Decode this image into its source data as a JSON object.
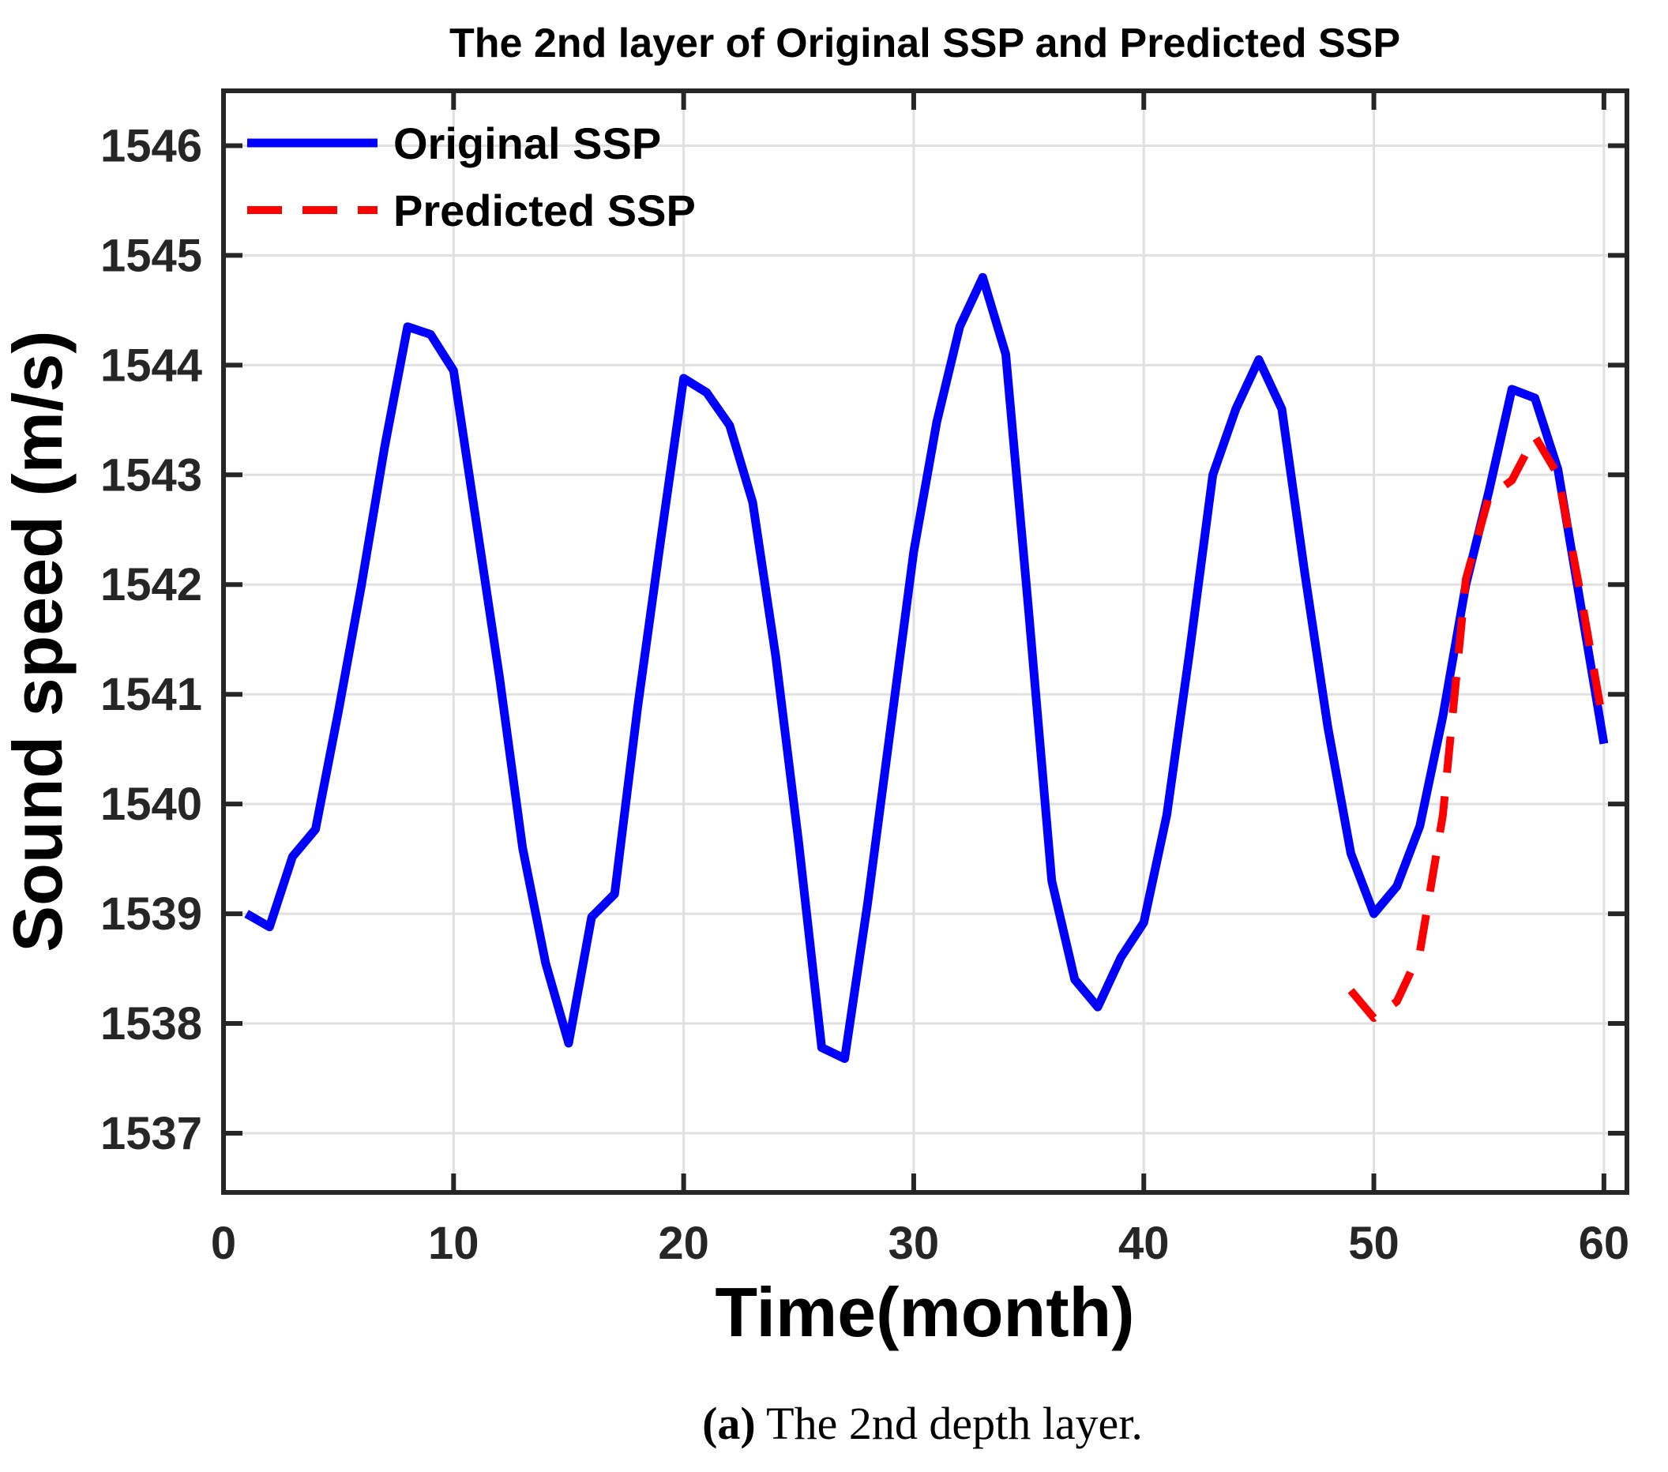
{
  "chart_data": {
    "type": "line",
    "title": "The 2nd layer of Original SSP and Predicted SSP",
    "xlabel": "Time(month)",
    "ylabel": "Sound speed (m/s)",
    "xlim": [
      0,
      61
    ],
    "ylim": [
      1536.46,
      1546.5
    ],
    "xticks": [
      0,
      10,
      20,
      30,
      40,
      50,
      60
    ],
    "yticks": [
      1537,
      1538,
      1539,
      1540,
      1541,
      1542,
      1543,
      1544,
      1545,
      1546
    ],
    "grid": true,
    "legend_position": "top-left-inside",
    "series": [
      {
        "name": "Original SSP",
        "color": "#0000FF",
        "line_style": "solid",
        "months": [
          1,
          2,
          3,
          4,
          5,
          6,
          7,
          8,
          9,
          10,
          11,
          12,
          13,
          14,
          15,
          16,
          17,
          18,
          19,
          20,
          21,
          22,
          23,
          24,
          25,
          26,
          27,
          28,
          29,
          30,
          31,
          32,
          33,
          34,
          35,
          36,
          37,
          38,
          39,
          40,
          41,
          42,
          43,
          44,
          45,
          46,
          47,
          48,
          49,
          50,
          51,
          52,
          53,
          54,
          55,
          56,
          57,
          58,
          59,
          60
        ],
        "values": [
          1539.0,
          1538.88,
          1539.52,
          1539.77,
          1540.85,
          1542.0,
          1543.25,
          1544.35,
          1544.28,
          1543.95,
          1542.55,
          1541.15,
          1539.6,
          1538.55,
          1537.82,
          1538.97,
          1539.18,
          1540.88,
          1542.4,
          1543.88,
          1543.75,
          1543.45,
          1542.75,
          1541.35,
          1539.65,
          1537.78,
          1537.68,
          1539.1,
          1540.7,
          1542.3,
          1543.48,
          1544.35,
          1544.8,
          1544.1,
          1541.75,
          1539.3,
          1538.4,
          1538.15,
          1538.6,
          1538.92,
          1539.9,
          1541.4,
          1543.0,
          1543.6,
          1544.05,
          1543.6,
          1542.1,
          1540.7,
          1539.55,
          1539.0,
          1539.25,
          1539.8,
          1540.8,
          1542.0,
          1542.85,
          1543.78,
          1543.7,
          1543.05,
          1541.8,
          1540.55
        ]
      },
      {
        "name": "Predicted SSP",
        "color": "#FF0000",
        "line_style": "dashed",
        "months": [
          49,
          50,
          51,
          52,
          53,
          54,
          55,
          56,
          57,
          58,
          59,
          60
        ],
        "values": [
          1538.3,
          1538.05,
          1538.2,
          1538.65,
          1539.9,
          1542.05,
          1542.8,
          1542.95,
          1543.35,
          1543.0,
          1541.9,
          1540.7
        ]
      }
    ]
  },
  "legend": {
    "items": [
      {
        "label": "Original SSP"
      },
      {
        "label": "Predicted SSP"
      }
    ]
  },
  "caption": {
    "prefix": "(a)",
    "text": " The 2nd depth layer."
  },
  "colors": {
    "original_line": "#0000FF",
    "predicted_line": "#FF0000",
    "axis": "#262626",
    "grid": "#e0e0e0",
    "tick_text": "#262626",
    "background": "#ffffff"
  }
}
